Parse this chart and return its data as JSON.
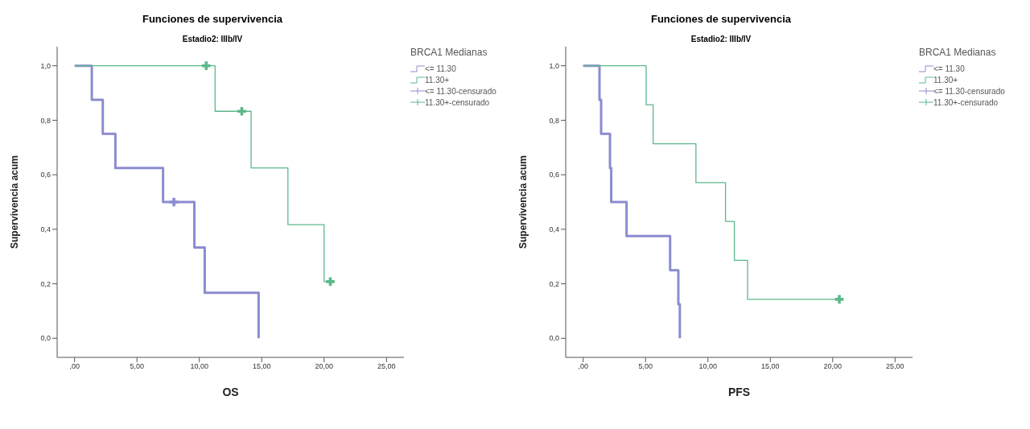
{
  "chart_data": [
    {
      "type": "step",
      "title": "Funciones de supervivencia",
      "subtitle": "Estadio2: IIIb/IV",
      "xlabel": "OS",
      "ylabel": "Supervivencia acum",
      "legend_title": "BRCA1 Medianas",
      "legend": "right",
      "xlim": [
        -1.4,
        26.4
      ],
      "xticks": [
        {
          "value": 0,
          "label": ",00"
        },
        {
          "value": 5,
          "label": "5,00"
        },
        {
          "value": 10,
          "label": "10,00"
        },
        {
          "value": 15,
          "label": "15,00"
        },
        {
          "value": 20,
          "label": "20,00"
        },
        {
          "value": 25,
          "label": "25,00"
        }
      ],
      "ylim": [
        -0.07,
        1.07
      ],
      "yticks": [
        {
          "value": 0,
          "label": "0,0"
        },
        {
          "value": 0.2,
          "label": "0,2"
        },
        {
          "value": 0.4,
          "label": "0,4"
        },
        {
          "value": 0.6,
          "label": "0,6"
        },
        {
          "value": 0.8,
          "label": "0,8"
        },
        {
          "value": 1,
          "label": "1,0"
        }
      ],
      "series": [
        {
          "name": "<= 11.30",
          "color": "#8c8cd0",
          "x": [
            0,
            1.38,
            2.26,
            3.27,
            7.09,
            9.6,
            10.43,
            14.75
          ],
          "values": [
            1,
            0.875,
            0.75,
            0.625,
            0.5,
            0.333,
            0.167,
            0
          ]
        },
        {
          "name": "11.30+",
          "color": "#5cb88a",
          "x": [
            0,
            11.26,
            14.15,
            17.1,
            20.0,
            20.5
          ],
          "values": [
            1,
            0.833,
            0.625,
            0.417,
            0.208,
            0.208
          ]
        },
        {
          "name": "<= 11.30-censurado",
          "type": "scatter",
          "marker": "cross",
          "color": "#8c8cd0",
          "x": [
            7.96
          ],
          "values": [
            0.5
          ]
        },
        {
          "name": "11.30+-censurado",
          "type": "scatter",
          "marker": "cross",
          "color": "#5cb88a",
          "x": [
            10.55,
            13.4,
            20.5
          ],
          "values": [
            1,
            0.833,
            0.208
          ]
        }
      ]
    },
    {
      "type": "step",
      "title": "Funciones de supervivencia",
      "subtitle": "Estadio2: IIIb/IV",
      "xlabel": "PFS",
      "ylabel": "Supervivencia acum",
      "legend_title": "BRCA1 Medianas",
      "legend": "right",
      "xlim": [
        -1.4,
        26.4
      ],
      "xticks": [
        {
          "value": 0,
          "label": ",00"
        },
        {
          "value": 5,
          "label": "5,00"
        },
        {
          "value": 10,
          "label": "10,00"
        },
        {
          "value": 15,
          "label": "15,00"
        },
        {
          "value": 20,
          "label": "20,00"
        },
        {
          "value": 25,
          "label": "25,00"
        }
      ],
      "ylim": [
        -0.07,
        1.07
      ],
      "yticks": [
        {
          "value": 0,
          "label": "0,0"
        },
        {
          "value": 0.2,
          "label": "0,2"
        },
        {
          "value": 0.4,
          "label": "0,4"
        },
        {
          "value": 0.6,
          "label": "0,6"
        },
        {
          "value": 0.8,
          "label": "0,8"
        },
        {
          "value": 1,
          "label": "1,0"
        }
      ],
      "series": [
        {
          "name": "<= 11.30",
          "color": "#8c8cd0",
          "x": [
            0,
            1.31,
            1.44,
            2.15,
            2.25,
            3.48,
            6.97,
            7.63,
            7.75
          ],
          "values": [
            1,
            0.875,
            0.75,
            0.625,
            0.5,
            0.375,
            0.25,
            0.125,
            0
          ]
        },
        {
          "name": "11.30+",
          "color": "#5cb88a",
          "x": [
            0,
            5.05,
            5.61,
            9.04,
            11.41,
            12.12,
            13.18,
            20.53
          ],
          "values": [
            1,
            0.857,
            0.714,
            0.571,
            0.429,
            0.286,
            0.143,
            0.143
          ]
        },
        {
          "name": "<= 11.30-censurado",
          "type": "scatter",
          "marker": "cross",
          "color": "#8c8cd0"
        },
        {
          "name": "11.30+-censurado",
          "type": "scatter",
          "marker": "cross",
          "color": "#5cb88a",
          "x": [
            20.53
          ],
          "values": [
            0.143
          ]
        }
      ]
    }
  ]
}
